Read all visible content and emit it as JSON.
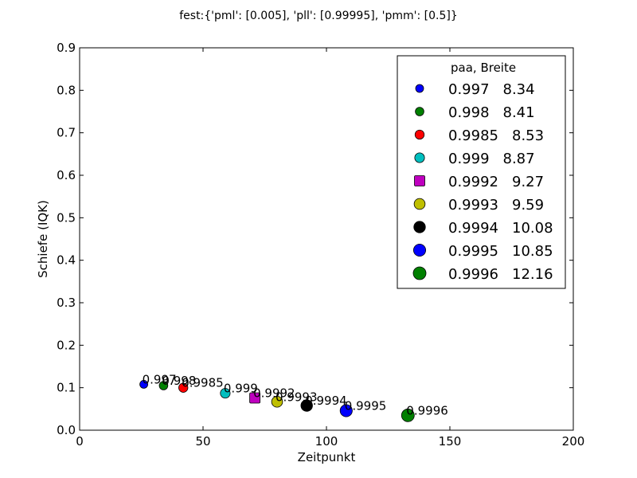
{
  "chart_data": {
    "type": "scatter",
    "title": "fest:{'pml': [0.005], 'pll': [0.99995], 'pmm': [0.5]}",
    "xlabel": "Zeitpunkt",
    "ylabel": "Schiefe (IQK)",
    "xlim": [
      0,
      200
    ],
    "ylim": [
      0.0,
      0.9
    ],
    "xticks": [
      0,
      50,
      100,
      150,
      200
    ],
    "yticks": [
      0.0,
      0.1,
      0.2,
      0.3,
      0.4,
      0.5,
      0.6,
      0.7,
      0.8,
      0.9
    ],
    "xtick_labels": [
      "0",
      "50",
      "100",
      "150",
      "200"
    ],
    "ytick_labels": [
      "0.0",
      "0.1",
      "0.2",
      "0.3",
      "0.4",
      "0.5",
      "0.6",
      "0.7",
      "0.8",
      "0.9"
    ],
    "grid": false,
    "legend": {
      "position": "top-right",
      "title": "paa,    Breite"
    },
    "series": [
      {
        "paa": "0.997",
        "breite": "8.34",
        "label": "0.997",
        "x": 26,
        "y": 0.108,
        "color": "#0000ff",
        "marker": "circle"
      },
      {
        "paa": "0.998",
        "breite": "8.41",
        "label": "0.998",
        "x": 34,
        "y": 0.105,
        "color": "#008000",
        "marker": "circle"
      },
      {
        "paa": "0.9985",
        "breite": "8.53",
        "label": "0.9985",
        "x": 42,
        "y": 0.1,
        "color": "#ff0000",
        "marker": "circle"
      },
      {
        "paa": "0.999",
        "breite": "8.87",
        "label": "0.999",
        "x": 59,
        "y": 0.087,
        "color": "#00bfbf",
        "marker": "circle"
      },
      {
        "paa": "0.9992",
        "breite": "9.27",
        "label": "0.9992",
        "x": 71,
        "y": 0.076,
        "color": "#bf00bf",
        "marker": "square"
      },
      {
        "paa": "0.9993",
        "breite": "9.59",
        "label": "0.9993",
        "x": 80,
        "y": 0.067,
        "color": "#bfbf00",
        "marker": "circle"
      },
      {
        "paa": "0.9994",
        "breite": "10.08",
        "label": "0.9994",
        "x": 92,
        "y": 0.058,
        "color": "#000000",
        "marker": "circle"
      },
      {
        "paa": "0.9995",
        "breite": "10.85",
        "label": "0.9995",
        "x": 108,
        "y": 0.046,
        "color": "#0000ff",
        "marker": "circle"
      },
      {
        "paa": "0.9996",
        "breite": "12.16",
        "label": "0.9996",
        "x": 133,
        "y": 0.035,
        "color": "#008000",
        "marker": "circle"
      }
    ]
  }
}
